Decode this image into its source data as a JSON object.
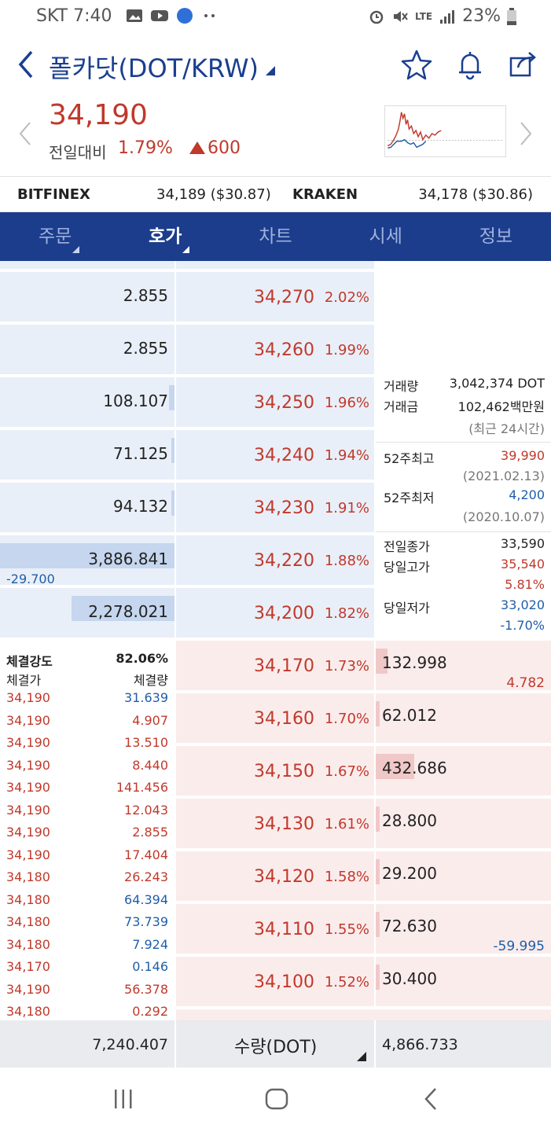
{
  "status": {
    "carrier": "SKT",
    "time": "7:40",
    "battery": "23%",
    "network": "LTE"
  },
  "header": {
    "title": "폴카닷(DOT/KRW)"
  },
  "summary": {
    "price": "34,190",
    "diff_label": "전일대비",
    "diff_pct": "1.79%",
    "diff_value": "600"
  },
  "exchanges": [
    {
      "name": "BITFINEX",
      "value": "34,189 ($30.87)"
    },
    {
      "name": "KRAKEN",
      "value": "34,178 ($30.86)"
    }
  ],
  "tabs": [
    {
      "label": "주문",
      "caret": true,
      "active": false
    },
    {
      "label": "호가",
      "caret": true,
      "active": true
    },
    {
      "label": "차트",
      "caret": false,
      "active": false
    },
    {
      "label": "시세",
      "caret": false,
      "active": false
    },
    {
      "label": "정보",
      "caret": false,
      "active": false
    }
  ],
  "asks": [
    {
      "qty": "2.855",
      "price": "34,270",
      "pct": "2.02%",
      "bar": 0.0,
      "change": ""
    },
    {
      "qty": "2.855",
      "price": "34,260",
      "pct": "1.99%",
      "bar": 0.0,
      "change": ""
    },
    {
      "qty": "108.107",
      "price": "34,250",
      "pct": "1.96%",
      "bar": 0.03,
      "change": ""
    },
    {
      "qty": "71.125",
      "price": "34,240",
      "pct": "1.94%",
      "bar": 0.02,
      "change": ""
    },
    {
      "qty": "94.132",
      "price": "34,230",
      "pct": "1.91%",
      "bar": 0.02,
      "change": ""
    },
    {
      "qty": "3,886.841",
      "price": "34,220",
      "pct": "1.88%",
      "bar": 1.0,
      "change": "-29.700"
    },
    {
      "qty": "2,278.021",
      "price": "34,200",
      "pct": "1.82%",
      "bar": 0.59,
      "change": ""
    }
  ],
  "bids": [
    {
      "qty": "132.998",
      "price": "34,170",
      "pct": "1.73%",
      "bar": 0.03,
      "change": "4.782",
      "change_color": "#c0392b"
    },
    {
      "qty": "62.012",
      "price": "34,160",
      "pct": "1.70%",
      "bar": 0.01,
      "change": "",
      "change_color": "#c0392b"
    },
    {
      "qty": "432.686",
      "price": "34,150",
      "pct": "1.67%",
      "bar": 0.1,
      "change": "",
      "change_color": "#c0392b"
    },
    {
      "qty": "28.800",
      "price": "34,130",
      "pct": "1.61%",
      "bar": 0.01,
      "change": "",
      "change_color": "#c0392b"
    },
    {
      "qty": "29.200",
      "price": "34,120",
      "pct": "1.58%",
      "bar": 0.01,
      "change": "",
      "change_color": "#c0392b"
    },
    {
      "qty": "72.630",
      "price": "34,110",
      "pct": "1.55%",
      "bar": 0.01,
      "change": "-59.995",
      "change_color": "#1f5ea8"
    },
    {
      "qty": "30.400",
      "price": "34,100",
      "pct": "1.52%",
      "bar": 0.01,
      "change": "",
      "change_color": "#c0392b"
    }
  ],
  "info": {
    "volume_label": "거래량",
    "volume": "3,042,374 DOT",
    "amount_label": "거래금",
    "amount": "102,462백만원",
    "period_note": "(최근 24시간)",
    "high52_label": "52주최고",
    "high52": "39,990",
    "high52_date": "(2021.02.13)",
    "low52_label": "52주최저",
    "low52": "4,200",
    "low52_date": "(2020.10.07)",
    "prev_close_label": "전일종가",
    "prev_close": "33,590",
    "day_high_label": "당일고가",
    "day_high": "35,540",
    "day_high_pct": "5.81%",
    "day_low_label": "당일저가",
    "day_low": "33,020",
    "day_low_pct": "-1.70%"
  },
  "trades": {
    "strength_label": "체결강도",
    "strength": "82.06%",
    "price_header": "체결가",
    "qty_header": "체결량",
    "rows": [
      {
        "price": "34,190",
        "qty": "31.639",
        "side": "buy"
      },
      {
        "price": "34,190",
        "qty": "4.907",
        "side": "sell"
      },
      {
        "price": "34,190",
        "qty": "13.510",
        "side": "sell"
      },
      {
        "price": "34,190",
        "qty": "8.440",
        "side": "sell"
      },
      {
        "price": "34,190",
        "qty": "141.456",
        "side": "sell"
      },
      {
        "price": "34,190",
        "qty": "12.043",
        "side": "sell"
      },
      {
        "price": "34,190",
        "qty": "2.855",
        "side": "sell"
      },
      {
        "price": "34,190",
        "qty": "17.404",
        "side": "sell"
      },
      {
        "price": "34,180",
        "qty": "26.243",
        "side": "sell"
      },
      {
        "price": "34,180",
        "qty": "64.394",
        "side": "buy"
      },
      {
        "price": "34,180",
        "qty": "73.739",
        "side": "buy"
      },
      {
        "price": "34,180",
        "qty": "7.924",
        "side": "buy"
      },
      {
        "price": "34,170",
        "qty": "0.146",
        "side": "buy"
      },
      {
        "price": "34,190",
        "qty": "56.378",
        "side": "sell"
      },
      {
        "price": "34,180",
        "qty": "0.292",
        "side": "sell"
      }
    ]
  },
  "totals": {
    "ask_total": "7,240.407",
    "unit_label": "수량(DOT)",
    "bid_total": "4,866.733"
  },
  "colors": {
    "rise": "#c0392b",
    "fall": "#1f5ea8",
    "navy": "#1c3d8c"
  }
}
